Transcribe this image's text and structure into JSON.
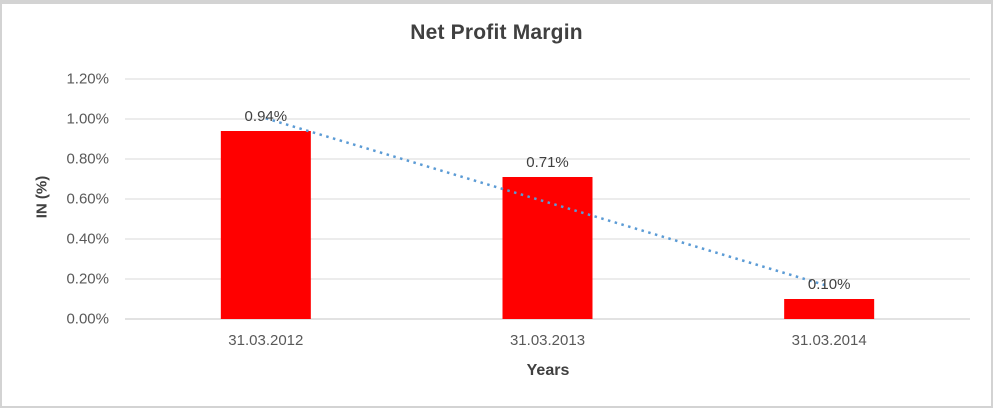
{
  "chart_data": {
    "type": "bar",
    "title": "Net Profit Margin",
    "xlabel": "Years",
    "ylabel": "IN (%)",
    "categories": [
      "31.03.2012",
      "31.03.2013",
      "31.03.2014"
    ],
    "values": [
      0.94,
      0.71,
      0.1
    ],
    "data_labels": [
      "0.94%",
      "0.71%",
      "0.10%"
    ],
    "ylim": [
      0,
      1.2
    ],
    "ytick_values": [
      0.0,
      0.2,
      0.4,
      0.6,
      0.8,
      1.0,
      1.2
    ],
    "ytick_labels": [
      "0.00%",
      "0.20%",
      "0.40%",
      "0.60%",
      "0.80%",
      "1.00%",
      "1.20%"
    ],
    "grid": true,
    "legend": "none",
    "bar_color": "#FF0000",
    "gridline_color": "#D9D9D9",
    "axis_line_color": "#C6C6C6",
    "trendline": {
      "type": "linear",
      "style": "dotted",
      "color": "#5B9BD5"
    }
  }
}
